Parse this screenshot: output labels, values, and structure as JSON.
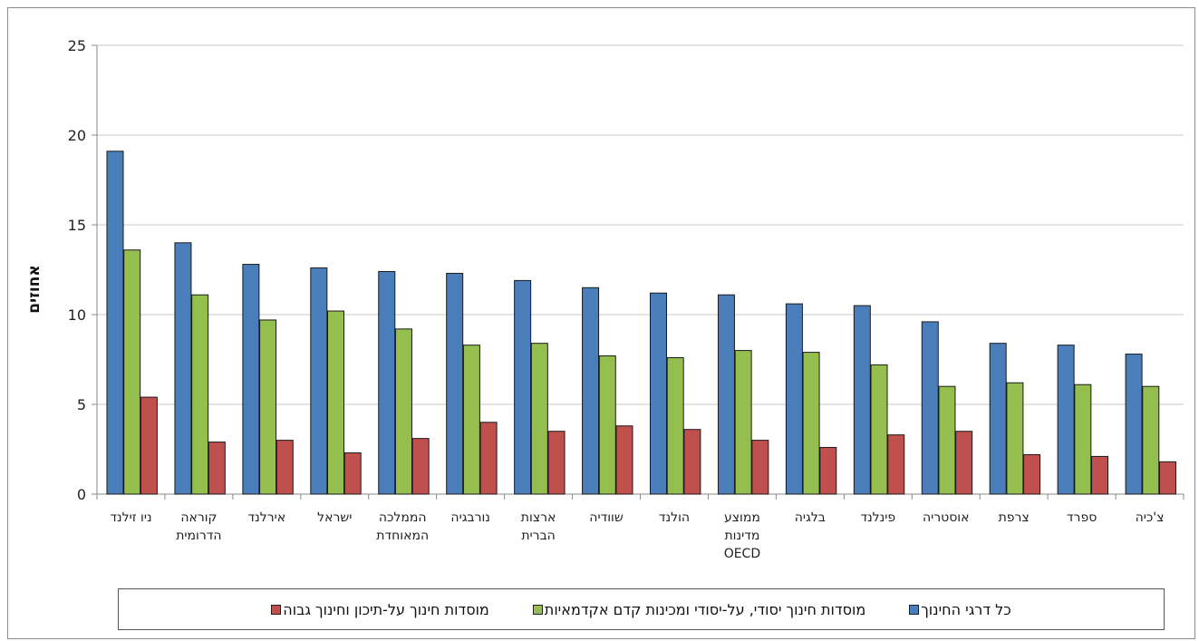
{
  "chart_data": {
    "type": "bar",
    "title": "",
    "xlabel": "",
    "ylabel": "אחוזים",
    "ylim": [
      0,
      25
    ],
    "yticks": [
      0,
      5,
      10,
      15,
      20,
      25
    ],
    "grid": true,
    "legend_position": "bottom",
    "categories": [
      [
        "ניו זילנד"
      ],
      [
        "קוראה",
        "הדרומית"
      ],
      [
        "אירלנד"
      ],
      [
        "ישראל"
      ],
      [
        "הממלכה",
        "המאוחדת"
      ],
      [
        "נורבגיה"
      ],
      [
        "ארצות",
        "הברית"
      ],
      [
        "שוודיה"
      ],
      [
        "הולנד"
      ],
      [
        "ממוצע",
        "מדינות",
        "OECD"
      ],
      [
        "בלגיה"
      ],
      [
        "פינלנד"
      ],
      [
        "אוסטריה"
      ],
      [
        "צרפת"
      ],
      [
        "ספרד"
      ],
      [
        "צ'כיה"
      ]
    ],
    "series": [
      {
        "name": "כל דרגי החינוך",
        "color": "#4a7ebb",
        "values": [
          19.1,
          14.0,
          12.8,
          12.6,
          12.4,
          12.3,
          11.9,
          11.5,
          11.2,
          11.1,
          10.6,
          10.5,
          9.6,
          8.4,
          8.3,
          7.8
        ]
      },
      {
        "name": "מוסדות חינוך יסודי, על-יסודי ומכינות קדם אקדמאיות",
        "color": "#94be4e",
        "values": [
          13.6,
          11.1,
          9.7,
          10.2,
          9.2,
          8.3,
          8.4,
          7.7,
          7.6,
          8.0,
          7.9,
          7.2,
          6.0,
          6.2,
          6.1,
          6.0
        ]
      },
      {
        "name": "מוסדות חינוך על-תיכון וחינוך גבוה",
        "color": "#c0504d",
        "values": [
          5.4,
          2.9,
          3.0,
          2.3,
          3.1,
          4.0,
          3.5,
          3.8,
          3.6,
          3.0,
          2.6,
          3.3,
          3.5,
          2.2,
          2.1,
          1.8
        ]
      }
    ]
  }
}
